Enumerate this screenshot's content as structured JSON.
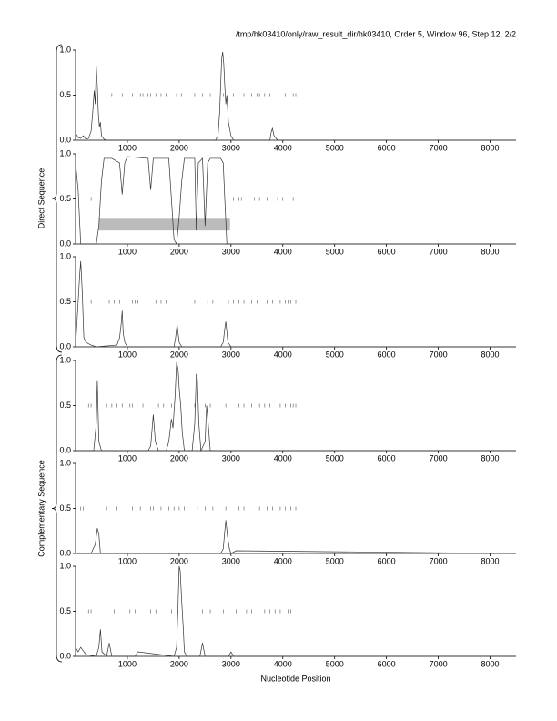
{
  "header": "/tmp/hk03410/only/raw_result_dir/hk03410, Order 5, Window 96, Step 12, 2/2",
  "groups": [
    {
      "label": "Direct Sequence",
      "panels": [
        0,
        2
      ]
    },
    {
      "label": "Complementary Sequence",
      "panels": [
        3,
        5
      ]
    }
  ],
  "x_label": "Nucleotide Position",
  "chart_data": [
    {
      "type": "line",
      "color": "#333333",
      "xlim": [
        0,
        8500
      ],
      "ylim": [
        0,
        1
      ],
      "xticks": [
        1000,
        2000,
        3000,
        4000,
        5000,
        6000,
        7000,
        8000
      ],
      "yticks": [
        {
          "value": 0,
          "label": "0.0"
        },
        0.5,
        {
          "value": 1,
          "label": "1.0"
        }
      ],
      "x": [
        0,
        50,
        100,
        150,
        200,
        250,
        300,
        330,
        360,
        380,
        400,
        420,
        440,
        460,
        480,
        500,
        550,
        600,
        1000,
        1500,
        2000,
        2500,
        2700,
        2750,
        2780,
        2800,
        2820,
        2840,
        2860,
        2880,
        2900,
        2920,
        2950,
        3000,
        3050,
        3500,
        3750,
        3780,
        3800,
        3830,
        3900,
        4500,
        8500
      ],
      "values": [
        0.08,
        0.03,
        0.02,
        0.05,
        0.01,
        0.02,
        0.1,
        0.3,
        0.55,
        0.4,
        0.82,
        0.6,
        0.3,
        0.15,
        0.2,
        0.05,
        0.01,
        0,
        0,
        0,
        0,
        0,
        0,
        0.05,
        0.3,
        0.6,
        0.9,
        0.98,
        0.85,
        0.6,
        0.4,
        0.5,
        0.2,
        0.05,
        0,
        0,
        0,
        0.1,
        0.13,
        0.05,
        0,
        0,
        0
      ],
      "stop_level": 0.5,
      "stops": [
        700,
        900,
        1100,
        1250,
        1300,
        1400,
        1450,
        1550,
        1650,
        1750,
        1950,
        2050,
        2300,
        2450,
        2600,
        2850,
        3050,
        3250,
        3400,
        3500,
        3550,
        3650,
        3750,
        4050,
        4200,
        4250
      ]
    },
    {
      "type": "line",
      "color": "#333333",
      "xlim": [
        0,
        8500
      ],
      "ylim": [
        0,
        1
      ],
      "xticks": [
        1000,
        2000,
        3000,
        4000,
        5000,
        6000,
        7000,
        8000
      ],
      "yticks": [
        {
          "value": 0,
          "label": "0.0"
        },
        0.5,
        {
          "value": 1,
          "label": "1.0"
        }
      ],
      "x": [
        0,
        50,
        100,
        200,
        400,
        450,
        500,
        550,
        700,
        850,
        900,
        950,
        1000,
        1400,
        1450,
        1500,
        1800,
        1850,
        1900,
        1950,
        2000,
        2050,
        2100,
        2150,
        2300,
        2330,
        2370,
        2450,
        2500,
        2550,
        2600,
        2800,
        2850,
        2880,
        2920,
        3000,
        8500
      ],
      "values": [
        0.9,
        0.6,
        0,
        0,
        0,
        0.2,
        0.7,
        0.95,
        0.95,
        0.9,
        0.55,
        0.9,
        0.97,
        0.95,
        0.6,
        0.95,
        0.95,
        0.5,
        0.05,
        0,
        0.3,
        0.7,
        0.95,
        0.95,
        0.95,
        0.15,
        0.9,
        0.95,
        0.2,
        0.9,
        0.95,
        0.95,
        0.9,
        0.5,
        0,
        0,
        0
      ],
      "stop_level": 0.5,
      "stops": [
        200,
        300,
        3050,
        3150,
        3200,
        3450,
        3550,
        3700,
        3900,
        4000,
        4200
      ],
      "region": {
        "start": 450,
        "end": 2980,
        "y0": 0.15,
        "y1": 0.28,
        "color": "#bbbbbb"
      }
    },
    {
      "type": "line",
      "color": "#333333",
      "xlim": [
        0,
        8500
      ],
      "ylim": [
        0,
        1
      ],
      "xticks": [
        1000,
        2000,
        3000,
        4000,
        5000,
        6000,
        7000,
        8000
      ],
      "yticks": [
        {
          "value": 0,
          "label": "0.0"
        },
        0.5,
        {
          "value": 1,
          "label": "1.0"
        }
      ],
      "x": [
        0,
        50,
        80,
        100,
        130,
        160,
        200,
        300,
        400,
        800,
        850,
        880,
        900,
        920,
        950,
        1000,
        1900,
        1930,
        1960,
        2000,
        2050,
        2800,
        2850,
        2880,
        2900,
        2940,
        3000,
        8500
      ],
      "values": [
        0,
        0.5,
        0.8,
        0.95,
        0.6,
        0.1,
        0.05,
        0.02,
        0,
        0.02,
        0.1,
        0.25,
        0.4,
        0.15,
        0.05,
        0,
        0,
        0.1,
        0.25,
        0.05,
        0,
        0,
        0.05,
        0.2,
        0.28,
        0.05,
        0,
        0
      ],
      "stop_level": 0.5,
      "stops": [
        200,
        300,
        650,
        750,
        850,
        1100,
        1150,
        1200,
        1550,
        1650,
        1750,
        2150,
        2300,
        2550,
        2650,
        2950,
        3050,
        3150,
        3250,
        3400,
        3500,
        3700,
        3800,
        3950,
        4050,
        4100,
        4150,
        4250
      ]
    },
    {
      "type": "line",
      "color": "#333333",
      "xlim": [
        0,
        8500
      ],
      "ylim": [
        0,
        1
      ],
      "xticks": [
        1000,
        2000,
        3000,
        4000,
        5000,
        6000,
        7000,
        8000
      ],
      "yticks": [
        {
          "value": 0,
          "label": "0.0"
        },
        0.5,
        {
          "value": 1,
          "label": "1.0"
        }
      ],
      "x": [
        0,
        350,
        400,
        420,
        450,
        500,
        1400,
        1450,
        1500,
        1540,
        1600,
        1750,
        1800,
        1850,
        1880,
        1920,
        1950,
        1980,
        2000,
        2030,
        2060,
        2100,
        2250,
        2300,
        2330,
        2350,
        2380,
        2420,
        2500,
        2530,
        2560,
        2600,
        2700,
        8500
      ],
      "values": [
        0,
        0,
        0.3,
        0.78,
        0.1,
        0,
        0,
        0.05,
        0.4,
        0.1,
        0,
        0,
        0.1,
        0.35,
        0.25,
        0.6,
        0.98,
        0.9,
        0.7,
        0.5,
        0.2,
        0,
        0,
        0.3,
        0.85,
        0.8,
        0.3,
        0,
        0.1,
        0.5,
        0.3,
        0,
        0,
        0
      ],
      "stop_level": 0.5,
      "stops": [
        250,
        300,
        400,
        600,
        700,
        800,
        900,
        1050,
        1100,
        1300,
        1600,
        1700,
        1850,
        2150,
        2300,
        2500,
        2600,
        2750,
        2900,
        3150,
        3250,
        3400,
        3550,
        3650,
        3750,
        3950,
        4050,
        4150,
        4200,
        4250
      ]
    },
    {
      "type": "line",
      "color": "#333333",
      "xlim": [
        0,
        8500
      ],
      "ylim": [
        0,
        1
      ],
      "xticks": [
        1000,
        2000,
        3000,
        4000,
        5000,
        6000,
        7000,
        8000
      ],
      "yticks": [
        {
          "value": 0,
          "label": "0.0"
        },
        0.5,
        {
          "value": 1,
          "label": "1.0"
        }
      ],
      "x": [
        0,
        300,
        380,
        420,
        450,
        480,
        2800,
        2850,
        2880,
        2900,
        2930,
        2970,
        3000,
        3100,
        8500
      ],
      "values": [
        0,
        0,
        0.1,
        0.28,
        0.22,
        0,
        0,
        0.05,
        0.25,
        0.37,
        0.2,
        0.05,
        0,
        0.03,
        0
      ],
      "stop_level": 0.5,
      "stops": [
        100,
        150,
        600,
        800,
        1100,
        1250,
        1450,
        1500,
        1650,
        1800,
        1900,
        2000,
        2100,
        2350,
        2500,
        2650,
        2900,
        3150,
        3250,
        3550,
        3700,
        3800,
        3950,
        4050,
        4150,
        4250
      ]
    },
    {
      "type": "line",
      "color": "#333333",
      "xlim": [
        0,
        8500
      ],
      "ylim": [
        0,
        1
      ],
      "xticks": [
        1000,
        2000,
        3000,
        4000,
        5000,
        6000,
        7000,
        8000
      ],
      "yticks": [
        {
          "value": 0,
          "label": "0.0"
        },
        0.5,
        {
          "value": 1,
          "label": "1.0"
        }
      ],
      "x": [
        0,
        50,
        100,
        200,
        400,
        450,
        480,
        510,
        600,
        650,
        700,
        1150,
        1200,
        1900,
        1950,
        1980,
        2000,
        2020,
        2050,
        2080,
        2100,
        2150,
        2400,
        2450,
        2500,
        2950,
        3000,
        3050,
        8500
      ],
      "values": [
        0.1,
        0.05,
        0.1,
        0.02,
        0,
        0.1,
        0.3,
        0.05,
        0,
        0.15,
        0,
        0,
        0.05,
        0,
        0.1,
        0.6,
        1.0,
        0.95,
        0.6,
        0.3,
        0.05,
        0,
        0,
        0.15,
        0,
        0,
        0.05,
        0,
        0
      ],
      "stop_level": 0.5,
      "stops": [
        250,
        300,
        750,
        1050,
        1150,
        1450,
        1550,
        1850,
        2450,
        2600,
        2750,
        2850,
        3100,
        3300,
        3400,
        3650,
        3750,
        3850,
        3950,
        4100,
        4150
      ]
    }
  ]
}
